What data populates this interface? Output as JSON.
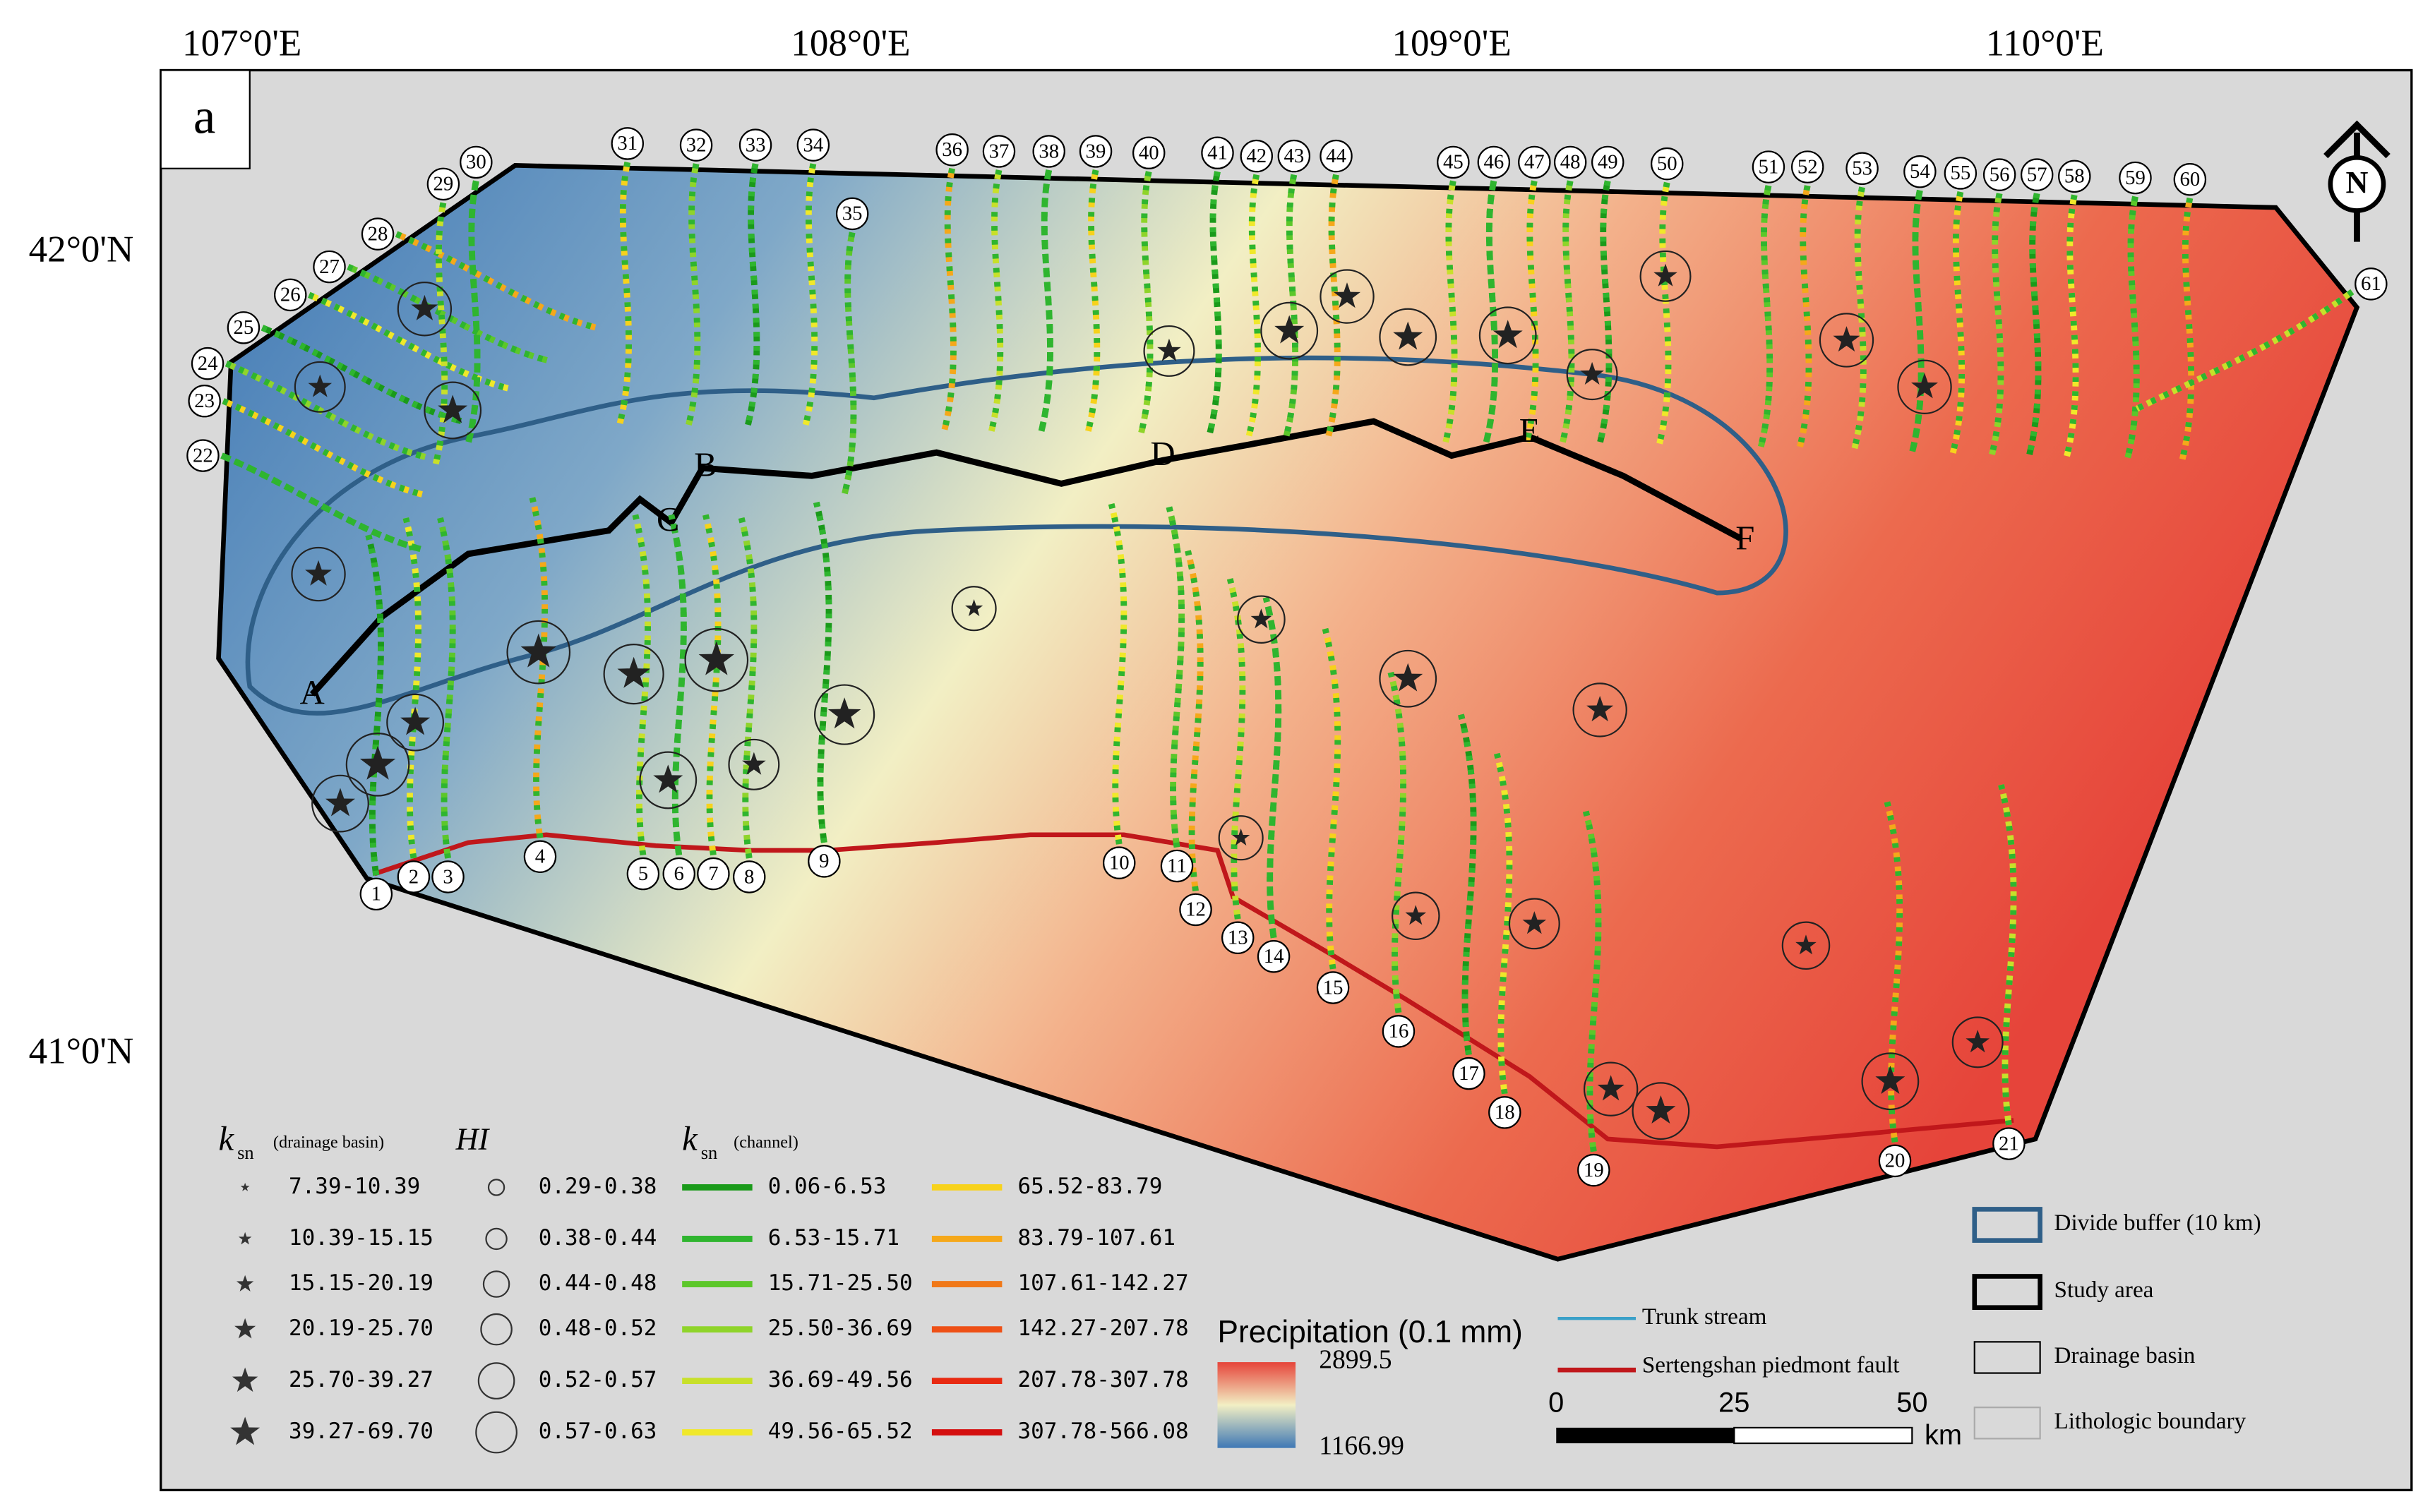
{
  "panel_label": "a",
  "longitude_labels": [
    "107°0'E",
    "108°0'E",
    "109°0'E",
    "110°0'E"
  ],
  "latitude_labels": [
    "42°0'N",
    "41°0'N"
  ],
  "north_arrow": "N",
  "basin_numbers": [
    "1",
    "2",
    "3",
    "4",
    "5",
    "6",
    "7",
    "8",
    "9",
    "10",
    "11",
    "12",
    "13",
    "14",
    "15",
    "16",
    "17",
    "18",
    "19",
    "20",
    "21",
    "22",
    "23",
    "24",
    "25",
    "26",
    "27",
    "28",
    "29",
    "30",
    "31",
    "32",
    "33",
    "34",
    "35",
    "36",
    "37",
    "38",
    "39",
    "40",
    "41",
    "42",
    "43",
    "44",
    "45",
    "46",
    "47",
    "48",
    "49",
    "50",
    "51",
    "52",
    "53",
    "54",
    "55",
    "56",
    "57",
    "58",
    "59",
    "60",
    "61"
  ],
  "divide_points": [
    "A",
    "B",
    "C",
    "D",
    "E",
    "F"
  ],
  "legend": {
    "ksn_basin": {
      "title": "k",
      "subscript": "sn",
      "note": "(drainage basin)",
      "classes": [
        "7.39-10.39",
        "10.39-15.15",
        "15.15-20.19",
        "20.19-25.70",
        "25.70-39.27",
        "39.27-69.70"
      ]
    },
    "hi": {
      "title": "HI",
      "classes": [
        "0.29-0.38",
        "0.38-0.44",
        "0.44-0.48",
        "0.48-0.52",
        "0.52-0.57",
        "0.57-0.63"
      ]
    },
    "ksn_channel": {
      "title": "k",
      "subscript": "sn",
      "note": "(channel)",
      "classes": [
        "0.06-6.53",
        "6.53-15.71",
        "15.71-25.50",
        "25.50-36.69",
        "36.69-49.56",
        "49.56-65.52",
        "65.52-83.79",
        "83.79-107.61",
        "107.61-142.27",
        "142.27-207.78",
        "207.78-307.78",
        "307.78-566.08"
      ]
    }
  },
  "precipitation": {
    "title": "Precipitation (0.1 mm)",
    "max": "2899.5",
    "min": "1166.99"
  },
  "scale_bar": {
    "ticks": [
      "0",
      "25",
      "50"
    ],
    "unit": "km"
  },
  "layer_legend": [
    "Trunk stream",
    "Sertengshan piedmont fault",
    "Divide buffer (10 km)",
    "Study area",
    "Drainage basin",
    "Lithologic boundary"
  ]
}
